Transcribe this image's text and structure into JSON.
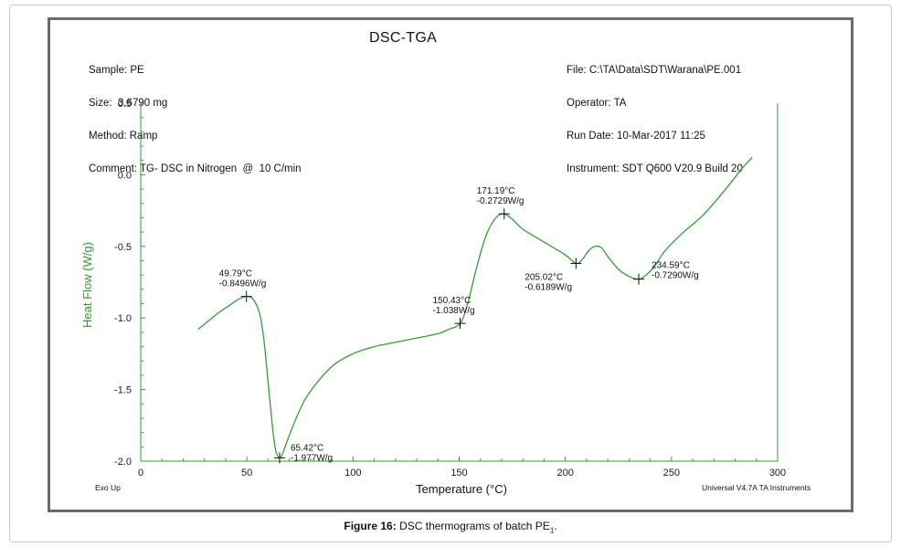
{
  "header": {
    "left": [
      "Sample: PE",
      "Size:  3.6790 mg",
      "Method: Ramp",
      "Comment: TG- DSC in Nitrogen  @  10 C/min"
    ],
    "title": "DSC-TGA",
    "right": [
      "File: C:\\TA\\Data\\SDT\\Warana\\PE.001",
      "Operator: TA",
      "Run Date: 10-Mar-2017 11:25",
      "Instrument: SDT Q600 V20.9 Build 20"
    ]
  },
  "footer": {
    "exo_label": "Exo Up",
    "software": "Universal V4.7A TA Instruments"
  },
  "caption": {
    "bold": "Figure 16:",
    "text": " DSC thermograms of batch PE",
    "subscript": "1",
    "end": "."
  },
  "colors": {
    "curve": "#3a9a3a",
    "axis_label": "#2e9a2e",
    "tick_label": "#1a1a1a"
  },
  "chart_data": {
    "type": "line",
    "xlabel": "Temperature (°C)",
    "ylabel": "Heat Flow (W/g)",
    "xlim": [
      0,
      300
    ],
    "ylim": [
      -2.0,
      0.5
    ],
    "xticks": [
      0,
      50,
      100,
      150,
      200,
      250,
      300
    ],
    "xtick_labels": [
      "0",
      "50",
      "100",
      "150",
      "200",
      "250",
      "300"
    ],
    "yticks": [
      -2.0,
      -1.5,
      -1.0,
      -0.5,
      0.0,
      0.5
    ],
    "ytick_labels": [
      "-2.0",
      "-1.5",
      "-1.0",
      "-0.5",
      "0.0",
      "0.5"
    ],
    "grid": false,
    "series": [
      {
        "x": [
          27,
          32,
          37,
          42,
          46,
          49.79,
          53,
          56,
          58,
          60,
          62,
          63.5,
          65.42,
          67,
          70,
          75,
          80,
          90,
          100,
          110,
          120,
          130,
          140,
          145,
          150.43,
          154,
          158,
          162,
          165,
          168,
          171.19,
          175,
          180,
          190,
          200,
          205.02,
          208,
          211,
          214,
          217,
          220,
          225,
          230,
          234.59,
          238,
          242,
          247,
          255,
          265,
          275,
          283,
          288
        ],
        "y": [
          -1.08,
          -1.02,
          -0.96,
          -0.91,
          -0.87,
          -0.8496,
          -0.87,
          -0.97,
          -1.15,
          -1.45,
          -1.75,
          -1.92,
          -1.977,
          -1.94,
          -1.82,
          -1.64,
          -1.51,
          -1.34,
          -1.25,
          -1.2,
          -1.17,
          -1.14,
          -1.11,
          -1.08,
          -1.038,
          -0.9,
          -0.66,
          -0.45,
          -0.35,
          -0.29,
          -0.2729,
          -0.31,
          -0.38,
          -0.47,
          -0.56,
          -0.6189,
          -0.59,
          -0.53,
          -0.5,
          -0.51,
          -0.57,
          -0.66,
          -0.71,
          -0.729,
          -0.7,
          -0.64,
          -0.53,
          -0.41,
          -0.28,
          -0.11,
          0.04,
          0.12
        ]
      }
    ],
    "annotations": [
      {
        "x": 49.79,
        "y": -0.8496,
        "lines": [
          "49.79°C",
          "-0.8496W/g"
        ],
        "pos": "above-left"
      },
      {
        "x": 65.42,
        "y": -1.977,
        "lines": [
          "65.42°C",
          "-1.977W/g"
        ],
        "pos": "right"
      },
      {
        "x": 150.43,
        "y": -1.038,
        "lines": [
          "150.43°C",
          "-1.038W/g"
        ],
        "pos": "above-left"
      },
      {
        "x": 171.19,
        "y": -0.2729,
        "lines": [
          "171.19°C",
          "-0.2729W/g"
        ],
        "pos": "above-left"
      },
      {
        "x": 205.02,
        "y": -0.6189,
        "lines": [
          "205.02°C",
          "-0.6189W/g"
        ],
        "pos": "below-left"
      },
      {
        "x": 234.59,
        "y": -0.729,
        "lines": [
          "234.59°C",
          "-0.7290W/g"
        ],
        "pos": "right"
      }
    ]
  }
}
